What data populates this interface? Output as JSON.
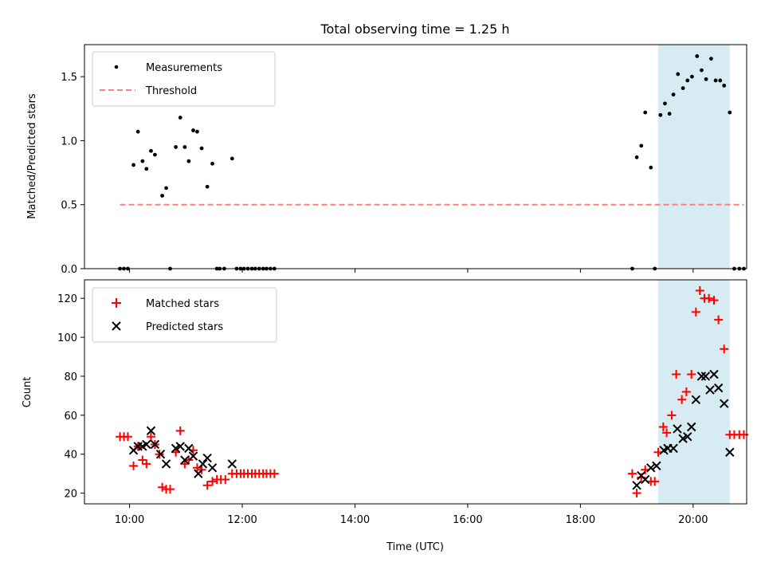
{
  "figure_title": "Total observing time = 1.25 h",
  "colors": {
    "measurements": "#000000",
    "threshold": "#ff7f7f",
    "matched": "#ff0000",
    "predicted": "#000000",
    "highlight": "#add8e6"
  },
  "chart_data": [
    {
      "type": "scatter",
      "ylabel": "Matched/Predicted stars",
      "xlim": [
        9.2,
        20.95
      ],
      "ylim": [
        0,
        1.75
      ],
      "yticks": [
        0.0,
        0.5,
        1.0,
        1.5
      ],
      "ytick_labels": [
        "0.0",
        "0.5",
        "1.0",
        "1.5"
      ],
      "xticks": [
        10,
        12,
        14,
        16,
        18,
        20
      ],
      "highlight_span": [
        19.38,
        20.65
      ],
      "legend": [
        "Measurements",
        "Threshold"
      ],
      "legend_position": "top-left",
      "series": [
        {
          "name": "Measurements",
          "marker": "dot",
          "points": [
            [
              9.83,
              0
            ],
            [
              9.9,
              0
            ],
            [
              9.97,
              0
            ],
            [
              10.07,
              0.81
            ],
            [
              10.15,
              1.07
            ],
            [
              10.23,
              0.84
            ],
            [
              10.3,
              0.78
            ],
            [
              10.38,
              0.92
            ],
            [
              10.45,
              0.89
            ],
            [
              10.58,
              0.57
            ],
            [
              10.65,
              0.63
            ],
            [
              10.72,
              0
            ],
            [
              10.82,
              0.95
            ],
            [
              10.9,
              1.18
            ],
            [
              10.98,
              0.95
            ],
            [
              11.05,
              0.84
            ],
            [
              11.13,
              1.08
            ],
            [
              11.2,
              1.07
            ],
            [
              11.28,
              0.94
            ],
            [
              11.38,
              0.64
            ],
            [
              11.47,
              0.82
            ],
            [
              11.55,
              0
            ],
            [
              11.6,
              0
            ],
            [
              11.68,
              0
            ],
            [
              11.82,
              0.86
            ],
            [
              11.9,
              0
            ],
            [
              11.97,
              0
            ],
            [
              12.03,
              0
            ],
            [
              12.1,
              0
            ],
            [
              12.17,
              0
            ],
            [
              12.23,
              0
            ],
            [
              12.3,
              0
            ],
            [
              12.37,
              0
            ],
            [
              12.43,
              0
            ],
            [
              12.5,
              0
            ],
            [
              12.57,
              0
            ],
            [
              18.92,
              0
            ],
            [
              19.0,
              0.87
            ],
            [
              19.08,
              0.96
            ],
            [
              19.15,
              1.22
            ],
            [
              19.25,
              0.79
            ],
            [
              19.32,
              0
            ],
            [
              19.42,
              1.2
            ],
            [
              19.5,
              1.29
            ],
            [
              19.58,
              1.21
            ],
            [
              19.65,
              1.36
            ],
            [
              19.73,
              1.52
            ],
            [
              19.82,
              1.41
            ],
            [
              19.9,
              1.47
            ],
            [
              19.98,
              1.5
            ],
            [
              20.07,
              1.66
            ],
            [
              20.15,
              1.55
            ],
            [
              20.23,
              1.48
            ],
            [
              20.32,
              1.64
            ],
            [
              20.4,
              1.47
            ],
            [
              20.48,
              1.47
            ],
            [
              20.55,
              1.43
            ],
            [
              20.65,
              1.22
            ],
            [
              20.73,
              0
            ],
            [
              20.82,
              0
            ],
            [
              20.9,
              0
            ]
          ]
        },
        {
          "name": "Threshold",
          "marker": "dashed-line",
          "points": [
            [
              9.83,
              0.5
            ],
            [
              20.9,
              0.5
            ]
          ]
        }
      ]
    },
    {
      "type": "scatter",
      "xlabel": "Time (UTC)",
      "ylabel": "Count",
      "xlim": [
        9.2,
        20.95
      ],
      "ylim": [
        14.5,
        129.5
      ],
      "yticks": [
        20,
        40,
        60,
        80,
        100,
        120
      ],
      "ytick_labels": [
        "20",
        "40",
        "60",
        "80",
        "100",
        "120"
      ],
      "xticks": [
        10,
        12,
        14,
        16,
        18,
        20
      ],
      "xtick_labels": [
        "10:00",
        "12:00",
        "14:00",
        "16:00",
        "18:00",
        "20:00"
      ],
      "highlight_span": [
        19.38,
        20.65
      ],
      "legend": [
        "Matched stars",
        "Predicted stars"
      ],
      "legend_position": "top-left",
      "series": [
        {
          "name": "Matched stars",
          "marker": "plus",
          "points": [
            [
              9.83,
              49
            ],
            [
              9.9,
              49
            ],
            [
              9.97,
              49
            ],
            [
              10.07,
              34
            ],
            [
              10.15,
              44
            ],
            [
              10.23,
              37
            ],
            [
              10.3,
              35
            ],
            [
              10.38,
              49
            ],
            [
              10.45,
              45
            ],
            [
              10.53,
              40
            ],
            [
              10.58,
              23
            ],
            [
              10.65,
              22
            ],
            [
              10.72,
              22
            ],
            [
              10.82,
              41
            ],
            [
              10.9,
              52
            ],
            [
              10.98,
              35
            ],
            [
              11.05,
              37
            ],
            [
              11.13,
              42
            ],
            [
              11.2,
              33
            ],
            [
              11.28,
              32
            ],
            [
              11.38,
              24
            ],
            [
              11.47,
              26
            ],
            [
              11.55,
              27
            ],
            [
              11.62,
              27
            ],
            [
              11.7,
              27
            ],
            [
              11.82,
              30
            ],
            [
              11.9,
              30
            ],
            [
              11.97,
              30
            ],
            [
              12.03,
              30
            ],
            [
              12.1,
              30
            ],
            [
              12.17,
              30
            ],
            [
              12.23,
              30
            ],
            [
              12.3,
              30
            ],
            [
              12.37,
              30
            ],
            [
              12.43,
              30
            ],
            [
              12.5,
              30
            ],
            [
              12.57,
              30
            ],
            [
              18.92,
              30
            ],
            [
              19.0,
              20
            ],
            [
              19.08,
              28
            ],
            [
              19.15,
              32
            ],
            [
              19.25,
              26
            ],
            [
              19.32,
              26
            ],
            [
              19.38,
              41
            ],
            [
              19.47,
              54
            ],
            [
              19.53,
              51
            ],
            [
              19.62,
              60
            ],
            [
              19.7,
              81
            ],
            [
              19.8,
              68
            ],
            [
              19.88,
              72
            ],
            [
              19.97,
              81
            ],
            [
              20.05,
              113
            ],
            [
              20.12,
              124
            ],
            [
              20.2,
              120
            ],
            [
              20.28,
              120
            ],
            [
              20.37,
              119
            ],
            [
              20.45,
              109
            ],
            [
              20.55,
              94
            ],
            [
              20.65,
              50
            ],
            [
              20.73,
              50
            ],
            [
              20.82,
              50
            ],
            [
              20.9,
              50
            ]
          ]
        },
        {
          "name": "Predicted stars",
          "marker": "x",
          "points": [
            [
              10.07,
              42
            ],
            [
              10.15,
              44
            ],
            [
              10.23,
              44
            ],
            [
              10.3,
              45
            ],
            [
              10.38,
              52
            ],
            [
              10.45,
              45
            ],
            [
              10.55,
              40
            ],
            [
              10.65,
              35
            ],
            [
              10.82,
              43
            ],
            [
              10.9,
              44
            ],
            [
              10.98,
              37
            ],
            [
              11.05,
              43
            ],
            [
              11.13,
              39
            ],
            [
              11.22,
              30
            ],
            [
              11.3,
              35
            ],
            [
              11.38,
              38
            ],
            [
              11.47,
              33
            ],
            [
              11.82,
              35
            ],
            [
              19.0,
              24
            ],
            [
              19.08,
              29
            ],
            [
              19.15,
              27
            ],
            [
              19.25,
              33
            ],
            [
              19.35,
              34
            ],
            [
              19.48,
              42
            ],
            [
              19.55,
              43
            ],
            [
              19.65,
              43
            ],
            [
              19.72,
              53
            ],
            [
              19.82,
              48
            ],
            [
              19.9,
              49
            ],
            [
              19.97,
              54
            ],
            [
              20.05,
              68
            ],
            [
              20.15,
              80
            ],
            [
              20.22,
              80
            ],
            [
              20.3,
              73
            ],
            [
              20.37,
              81
            ],
            [
              20.45,
              74
            ],
            [
              20.55,
              66
            ],
            [
              20.65,
              41
            ]
          ]
        }
      ]
    }
  ]
}
